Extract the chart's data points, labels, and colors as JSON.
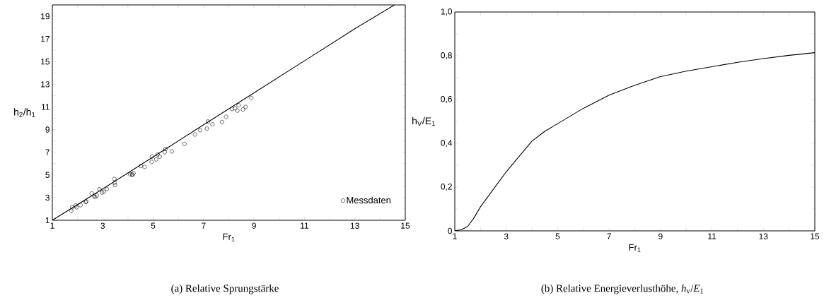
{
  "chart_data": [
    {
      "type": "scatter",
      "title": "(a) Relative Sprungstärke",
      "xlabel": "Fr$_{1}$",
      "ylabel": "h$_{2}$/h$_{1}$",
      "xlim": [
        1,
        15
      ],
      "ylim": [
        1,
        20
      ],
      "xticks": [
        1,
        {
          "value": 2,
          "label": null
        },
        3,
        {
          "value": 4,
          "label": null
        },
        5,
        {
          "value": 6,
          "label": null
        },
        7,
        {
          "value": 8,
          "label": null
        },
        9,
        {
          "value": 10,
          "label": null
        },
        11,
        {
          "value": 12,
          "label": null
        },
        13,
        {
          "value": 14,
          "label": null
        },
        15
      ],
      "yticks": [
        1,
        {
          "value": 2,
          "label": null
        },
        3,
        {
          "value": 4,
          "label": null
        },
        5,
        {
          "value": 6,
          "label": null
        },
        7,
        {
          "value": 8,
          "label": null
        },
        9,
        {
          "value": 10,
          "label": null
        },
        11,
        {
          "value": 12,
          "label": null
        },
        13,
        {
          "value": 14,
          "label": null
        },
        15,
        {
          "value": 16,
          "label": null
        },
        17,
        {
          "value": 18,
          "label": null
        },
        19
      ],
      "legend": "bottom right",
      "series": [
        {
          "name": "Messdaten",
          "type": "scatter",
          "marker": "circle",
          "color": "#000000",
          "x": [
            1.75,
            1.78,
            1.92,
            1.96,
            2.12,
            2.32,
            2.35,
            2.56,
            2.65,
            2.7,
            2.76,
            2.87,
            2.97,
            3.04,
            3.16,
            3.46,
            3.47,
            3.49,
            4.09,
            4.16,
            4.22,
            4.18,
            4.51,
            4.66,
            4.94,
            4.95,
            5.12,
            5.18,
            5.26,
            5.46,
            5.49,
            5.74,
            6.24,
            6.66,
            6.86,
            7.13,
            7.17,
            7.35,
            7.73,
            7.89,
            8.13,
            8.25,
            8.34,
            8.39,
            8.56,
            8.67,
            8.89
          ],
          "values": [
            1.85,
            2.16,
            2.31,
            2.14,
            2.33,
            2.62,
            2.66,
            3.37,
            3.14,
            3.05,
            3.18,
            3.74,
            3.45,
            3.51,
            3.76,
            4.65,
            4.32,
            4.11,
            5.05,
            5.05,
            5.15,
            5.0,
            5.79,
            5.71,
            6.15,
            6.62,
            6.37,
            6.81,
            6.62,
            7.0,
            7.29,
            7.08,
            7.74,
            8.57,
            8.95,
            9.09,
            9.71,
            9.46,
            9.67,
            10.13,
            10.83,
            10.88,
            10.67,
            11.15,
            10.77,
            11.0,
            11.79
          ]
        },
        {
          "type": "line",
          "marker": "none",
          "line_style": "solid",
          "color": "#000000",
          "x": [
            1,
            3,
            5,
            7,
            9,
            11,
            13,
            14.57
          ],
          "values": [
            1,
            3.77,
            6.59,
            9.42,
            12.24,
            15.07,
            17.9,
            20
          ]
        }
      ]
    },
    {
      "type": "line",
      "title": "(b) Relative Energieverlusthöhe, *h*$_{v}$/*E*$_{1}$",
      "xlabel": "Fr$_{1}$",
      "ylabel": "h$_{V}$/E$_{1}$",
      "xlim": [
        1,
        15
      ],
      "ylim": [
        0,
        1
      ],
      "xticks": [
        1,
        {
          "value": 2,
          "label": null
        },
        3,
        {
          "value": 4,
          "label": null
        },
        5,
        {
          "value": 6,
          "label": null
        },
        7,
        {
          "value": 8,
          "label": null
        },
        9,
        {
          "value": 10,
          "label": null
        },
        11,
        {
          "value": 12,
          "label": null
        },
        13,
        {
          "value": 14,
          "label": null
        },
        15
      ],
      "yticks": [
        0,
        {
          "value": 0.1,
          "label": null
        },
        {
          "value": 0.2,
          "label": "0,2"
        },
        {
          "value": 0.3,
          "label": null
        },
        {
          "value": 0.4,
          "label": "0,4"
        },
        {
          "value": 0.5,
          "label": null
        },
        {
          "value": 0.6,
          "label": "0,6"
        },
        {
          "value": 0.7,
          "label": null
        },
        {
          "value": 0.8,
          "label": "0,8"
        },
        {
          "value": 0.9,
          "label": null
        },
        {
          "value": 1,
          "label": "1,0"
        }
      ],
      "marker": "none",
      "line_style": "solid",
      "series": [
        {
          "color": "#000000",
          "x": [
            1,
            1.25,
            1.5,
            1.75,
            2,
            2.5,
            3,
            3.5,
            4,
            4.5,
            5,
            6,
            7,
            8,
            9,
            10,
            11,
            12,
            13,
            14,
            15
          ],
          "values": [
            0,
            0.005,
            0.02,
            0.06,
            0.11,
            0.19,
            0.27,
            0.34,
            0.41,
            0.455,
            0.49,
            0.56,
            0.62,
            0.665,
            0.705,
            0.73,
            0.75,
            0.77,
            0.787,
            0.802,
            0.814
          ]
        }
      ]
    }
  ]
}
